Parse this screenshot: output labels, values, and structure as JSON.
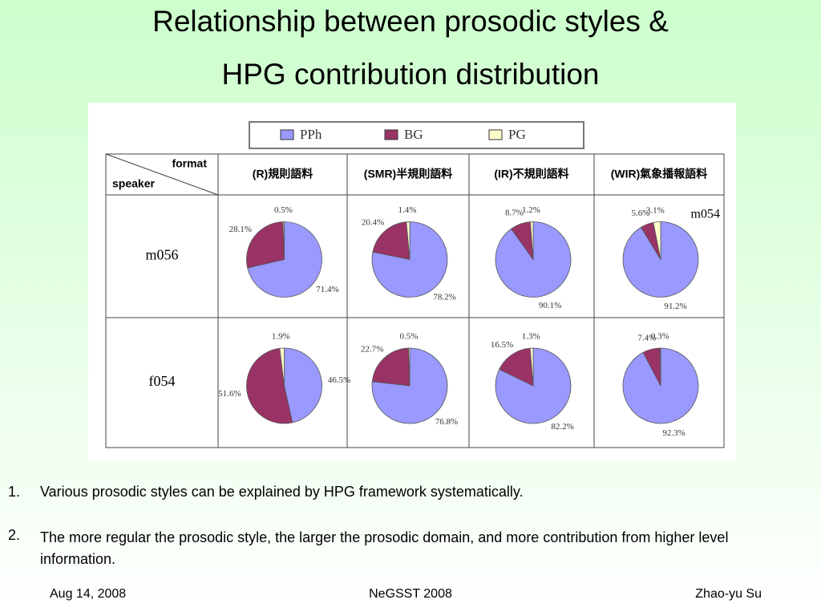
{
  "title": [
    "Relationship between prosodic styles &",
    "HPG contribution distribution"
  ],
  "table": {
    "corner": [
      "format",
      "speaker"
    ],
    "columns": [
      "(R)規則語料",
      "(SMR)半規則語料",
      "(IR)不規則語料",
      "(WIR)氣象播報語料"
    ],
    "rows": [
      "m056",
      "f054"
    ],
    "annotation": "m054"
  },
  "chart_data": [
    {
      "type": "pie",
      "categories": [
        "PPh",
        "BG",
        "PG"
      ],
      "colors": [
        "#9999ff",
        "#993366",
        "#ffffcc"
      ],
      "values": [
        71.4,
        28.1,
        0.5
      ],
      "value_labels": [
        "71.4%",
        "28.1%",
        "0.5%"
      ]
    },
    {
      "type": "pie",
      "categories": [
        "PPh",
        "BG",
        "PG"
      ],
      "colors": [
        "#9999ff",
        "#993366",
        "#ffffcc"
      ],
      "values": [
        78.2,
        20.4,
        1.4
      ],
      "value_labels": [
        "78.2%",
        "20.4%",
        "1.4%"
      ]
    },
    {
      "type": "pie",
      "categories": [
        "PPh",
        "BG",
        "PG"
      ],
      "colors": [
        "#9999ff",
        "#993366",
        "#ffffcc"
      ],
      "values": [
        90.1,
        8.7,
        1.2
      ],
      "value_labels": [
        "90.1%",
        "8.7%",
        "1.2%"
      ]
    },
    {
      "type": "pie",
      "categories": [
        "PPh",
        "BG",
        "PG"
      ],
      "colors": [
        "#9999ff",
        "#993366",
        "#ffffcc"
      ],
      "values": [
        91.2,
        5.6,
        3.1
      ],
      "value_labels": [
        "91.2%",
        "5.6%",
        "3.1%"
      ]
    },
    {
      "type": "pie",
      "categories": [
        "PPh",
        "BG",
        "PG"
      ],
      "colors": [
        "#9999ff",
        "#993366",
        "#ffffcc"
      ],
      "values": [
        46.5,
        51.6,
        1.9
      ],
      "value_labels": [
        "46.5%",
        "51.6%",
        "1.9%"
      ]
    },
    {
      "type": "pie",
      "categories": [
        "PPh",
        "BG",
        "PG"
      ],
      "colors": [
        "#9999ff",
        "#993366",
        "#ffffcc"
      ],
      "values": [
        76.8,
        22.7,
        0.5
      ],
      "value_labels": [
        "76.8%",
        "22.7%",
        "0.5%"
      ]
    },
    {
      "type": "pie",
      "categories": [
        "PPh",
        "BG",
        "PG"
      ],
      "colors": [
        "#9999ff",
        "#993366",
        "#ffffcc"
      ],
      "values": [
        82.2,
        16.5,
        1.3
      ],
      "value_labels": [
        "82.2%",
        "16.5%",
        "1.3%"
      ]
    },
    {
      "type": "pie",
      "categories": [
        "PPh",
        "BG",
        "PG"
      ],
      "colors": [
        "#9999ff",
        "#993366",
        "#ffffcc"
      ],
      "values": [
        92.3,
        7.4,
        0.3
      ],
      "value_labels": [
        "92.3%",
        "7.4%",
        "0.3%"
      ]
    }
  ],
  "bullets": [
    {
      "number": "1.",
      "text": "Various prosodic styles can be explained by HPG framework systematically."
    },
    {
      "number": "2.",
      "text": "The more regular the prosodic style, the larger the prosodic domain, and more contribution from higher level information."
    }
  ],
  "footer": {
    "date": "Aug 14, 2008",
    "event": "NeGSST 2008",
    "author": "Zhao-yu Su"
  }
}
